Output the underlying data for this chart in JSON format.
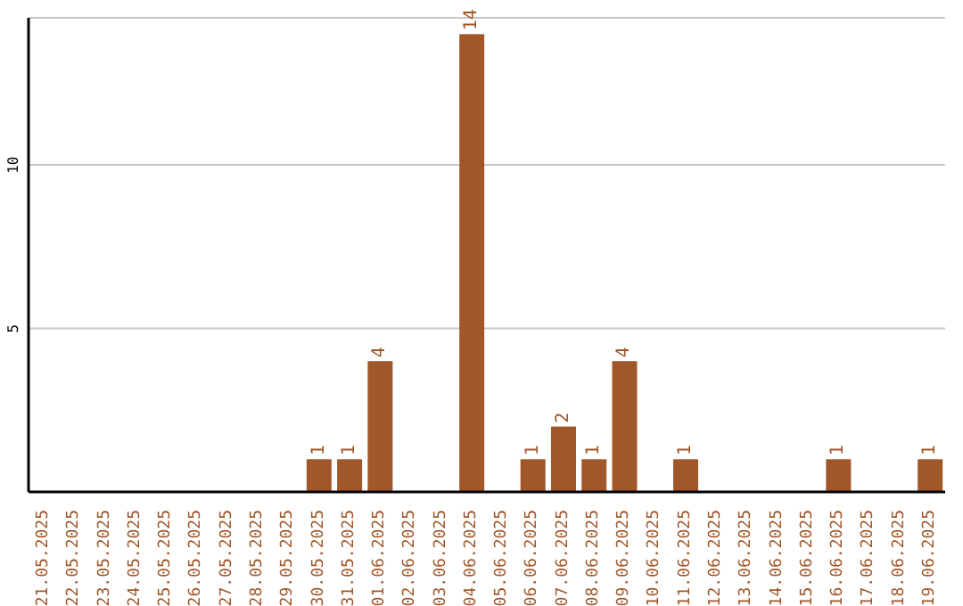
{
  "chart_data": {
    "type": "bar",
    "categories": [
      "21.05.2025",
      "22.05.2025",
      "23.05.2025",
      "24.05.2025",
      "25.05.2025",
      "26.05.2025",
      "27.05.2025",
      "28.05.2025",
      "29.05.2025",
      "30.05.2025",
      "31.05.2025",
      "01.06.2025",
      "02.06.2025",
      "03.06.2025",
      "04.06.2025",
      "05.06.2025",
      "06.06.2025",
      "07.06.2025",
      "08.06.2025",
      "09.06.2025",
      "10.06.2025",
      "11.06.2025",
      "12.06.2025",
      "13.06.2025",
      "14.06.2025",
      "15.06.2025",
      "16.06.2025",
      "17.06.2025",
      "18.06.2025",
      "19.06.2025"
    ],
    "series": [
      {
        "color": "#a0572a",
        "values": [
          0,
          0,
          0,
          0,
          0,
          0,
          0,
          0,
          0,
          1,
          1,
          4,
          0,
          0,
          14,
          0,
          1,
          2,
          1,
          4,
          0,
          1,
          0,
          0,
          0,
          0,
          1,
          0,
          0,
          1
        ],
        "value_labels": [
          null,
          null,
          null,
          null,
          null,
          null,
          null,
          null,
          null,
          "1",
          "1",
          "4",
          null,
          null,
          "14",
          null,
          "1",
          "2",
          "1",
          "4",
          null,
          "1",
          null,
          null,
          null,
          null,
          "1",
          null,
          null,
          "1"
        ]
      }
    ],
    "ylim": [
      0,
      14.5
    ],
    "yticks": [
      5,
      10
    ],
    "grid": "y"
  }
}
